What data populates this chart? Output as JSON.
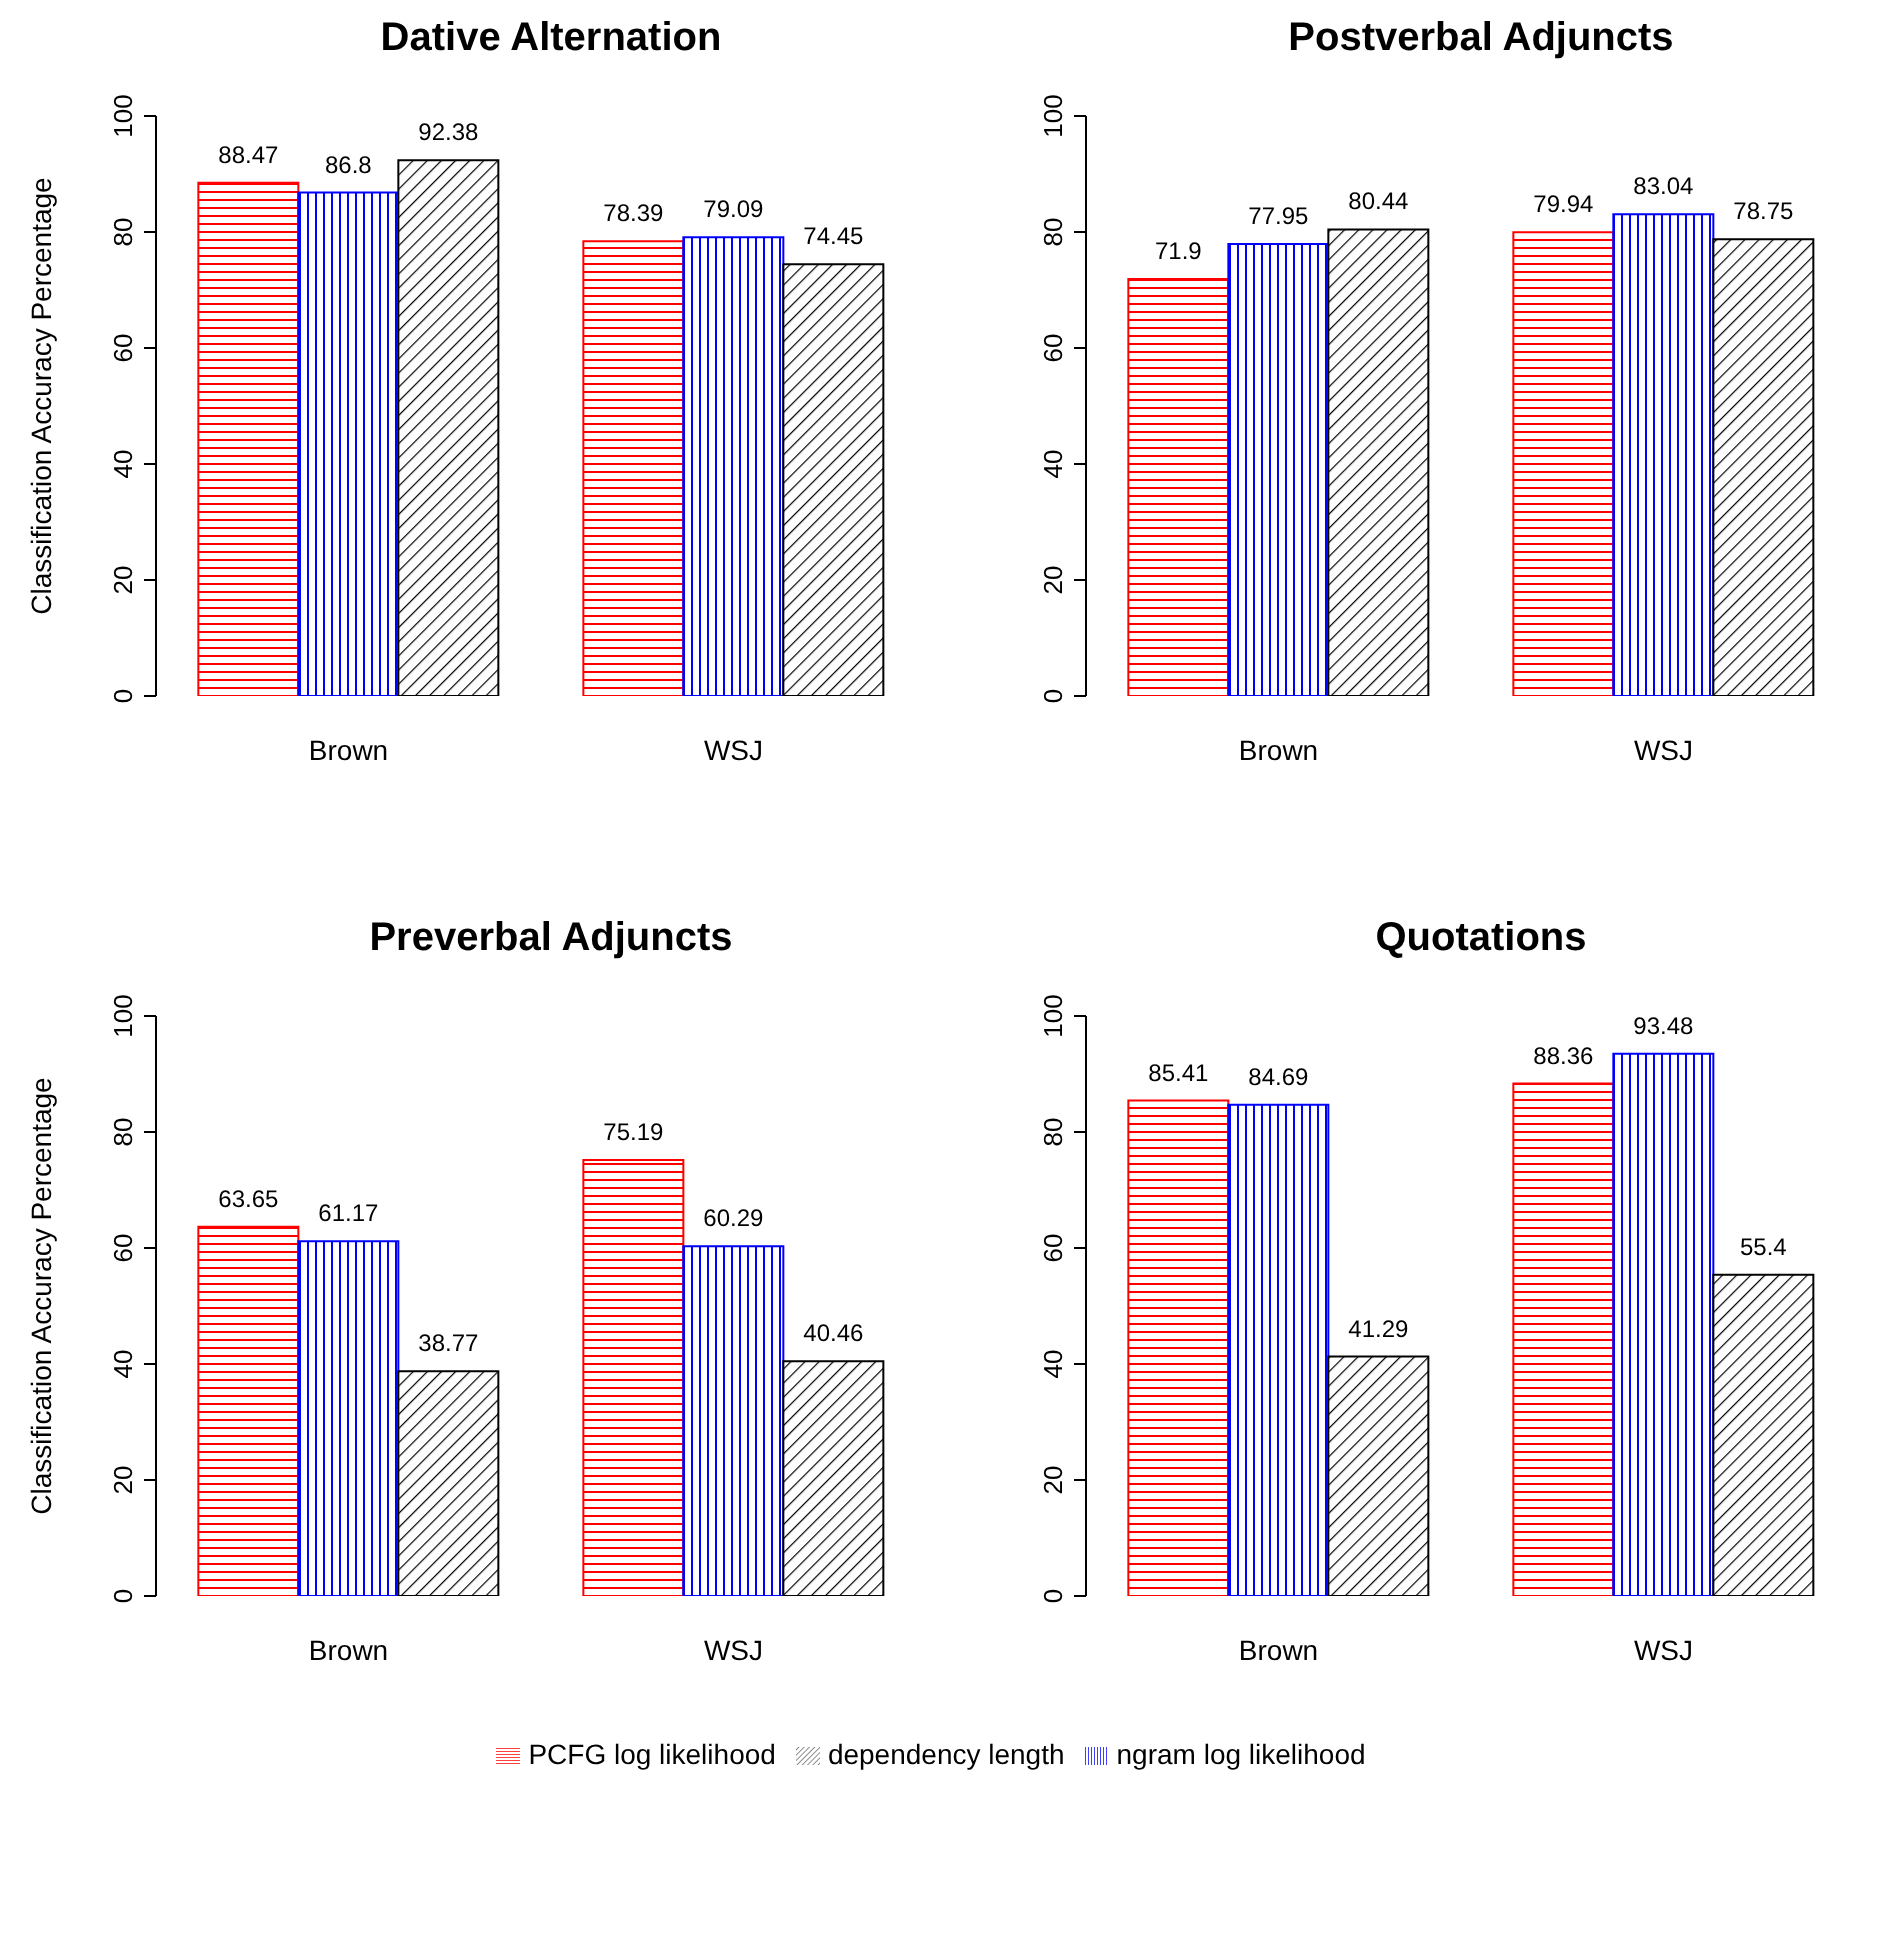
{
  "chart_data": [
    {
      "type": "bar",
      "title": "Dative Alternation",
      "ylabel": "Classification Accuracy Percentage",
      "categories": [
        "Brown",
        "WSJ"
      ],
      "series": [
        {
          "color": "#ff0000",
          "values": [
            88.47,
            78.39
          ]
        },
        {
          "color": "#0000ff",
          "values": [
            86.8,
            79.09
          ]
        },
        {
          "color": "#000000",
          "values": [
            92.38,
            74.45
          ]
        }
      ],
      "ylim": [
        0,
        100
      ],
      "yticks": [
        0,
        20,
        40,
        60,
        80,
        100
      ],
      "data_labels": true
    },
    {
      "type": "bar",
      "title": "Postverbal Adjuncts",
      "categories": [
        "Brown",
        "WSJ"
      ],
      "series": [
        {
          "color": "#ff0000",
          "values": [
            71.9,
            79.94
          ]
        },
        {
          "color": "#0000ff",
          "values": [
            77.95,
            83.04
          ]
        },
        {
          "color": "#000000",
          "values": [
            80.44,
            78.75
          ]
        }
      ],
      "ylim": [
        0,
        100
      ],
      "yticks": [
        0,
        20,
        40,
        60,
        80,
        100
      ],
      "data_labels": true
    },
    {
      "type": "bar",
      "title": "Preverbal Adjuncts",
      "ylabel": "Classification Accuracy Percentage",
      "categories": [
        "Brown",
        "WSJ"
      ],
      "series": [
        {
          "color": "#ff0000",
          "values": [
            63.65,
            75.19
          ]
        },
        {
          "color": "#0000ff",
          "values": [
            61.17,
            60.29
          ]
        },
        {
          "color": "#000000",
          "values": [
            38.77,
            40.46
          ]
        }
      ],
      "ylim": [
        0,
        100
      ],
      "yticks": [
        0,
        20,
        40,
        60,
        80,
        100
      ],
      "data_labels": true
    },
    {
      "type": "bar",
      "title": "Quotations",
      "categories": [
        "Brown",
        "WSJ"
      ],
      "series": [
        {
          "name": "PCFG log likelihood",
          "color": "#ff0000",
          "values": [
            85.41,
            88.36
          ]
        },
        {
          "name": "ngram log likelihood",
          "color": "#0000ff",
          "values": [
            84.69,
            93.48
          ]
        },
        {
          "name": "dependency length",
          "color": "#000000",
          "values": [
            41.29,
            55.4
          ]
        }
      ],
      "ylim": [
        0,
        100
      ],
      "yticks": [
        0,
        20,
        40,
        60,
        80,
        100
      ],
      "data_labels": true,
      "legend": "bottom"
    }
  ]
}
